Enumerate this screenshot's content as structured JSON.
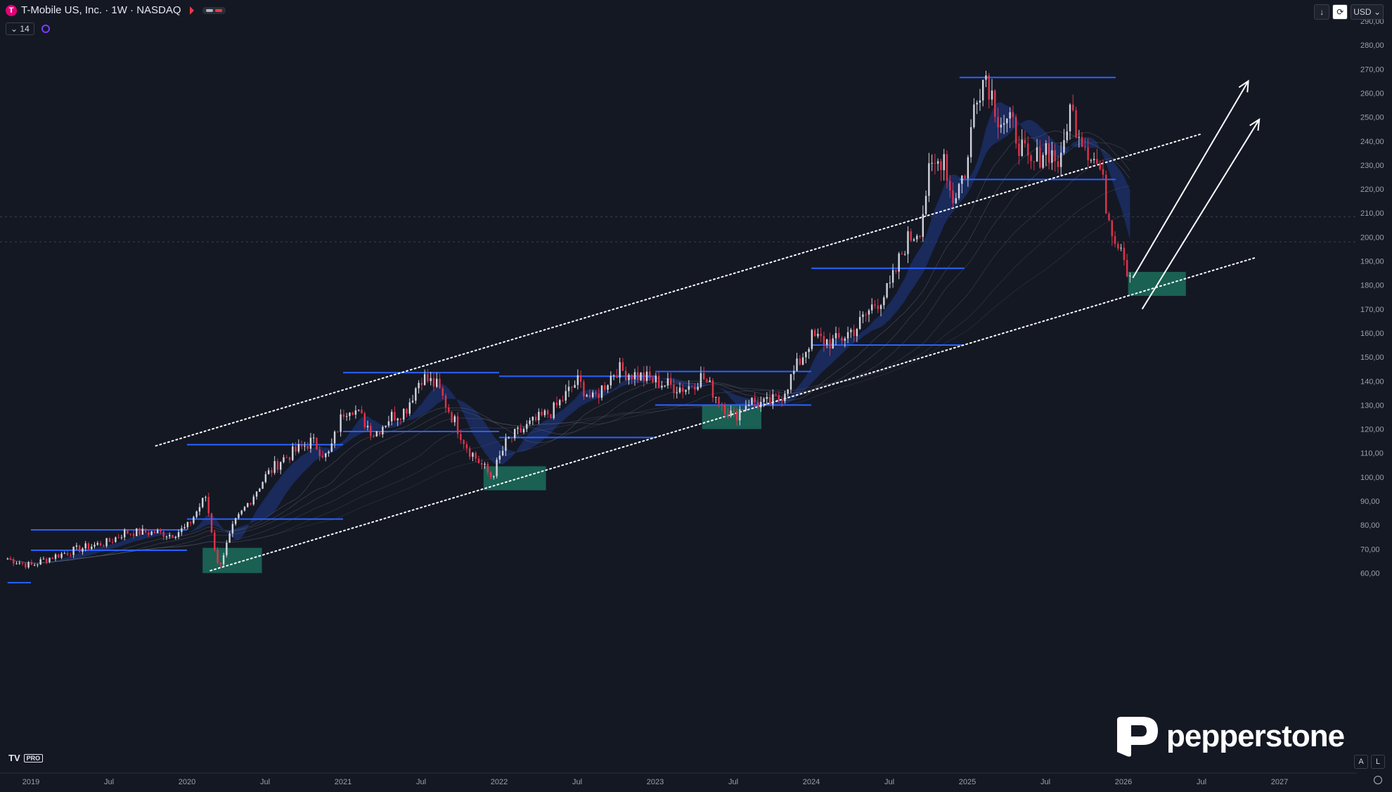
{
  "header": {
    "title": "T-Mobile US, Inc. · 1W · NASDAQ",
    "indicator_count": "14",
    "currency": "USD",
    "logo_letter": "T"
  },
  "branding": {
    "tv_label": "PRO",
    "broker": "pepperstone"
  },
  "corner_buttons": [
    "A",
    "L"
  ],
  "colors": {
    "background": "#141823",
    "up": "#d1d4dc",
    "down": "#e0334b",
    "level_line": "#2962ff",
    "zone": "#1b6d5c",
    "ribbon": "#1e3a8a"
  },
  "chart_data": {
    "type": "candlestick",
    "timeframe": "1W",
    "symbol": "T-Mobile US, Inc.",
    "exchange": "NASDAQ",
    "ylim": [
      50,
      290
    ],
    "x_ticks": [
      {
        "label": "2019",
        "t": 2019.0
      },
      {
        "label": "Jul",
        "t": 2019.5
      },
      {
        "label": "2020",
        "t": 2020.0
      },
      {
        "label": "Jul",
        "t": 2020.5
      },
      {
        "label": "2021",
        "t": 2021.0
      },
      {
        "label": "Jul",
        "t": 2021.5
      },
      {
        "label": "2022",
        "t": 2022.0
      },
      {
        "label": "Jul",
        "t": 2022.5
      },
      {
        "label": "2023",
        "t": 2023.0
      },
      {
        "label": "Jul",
        "t": 2023.5
      },
      {
        "label": "2024",
        "t": 2024.0
      },
      {
        "label": "Jul",
        "t": 2024.5
      },
      {
        "label": "2025",
        "t": 2025.0
      },
      {
        "label": "Jul",
        "t": 2025.5
      },
      {
        "label": "2026",
        "t": 2026.0
      },
      {
        "label": "Jul",
        "t": 2026.5
      },
      {
        "label": "2027",
        "t": 2027.0
      }
    ],
    "y_ticks": [
      "60,00",
      "70,00",
      "80,00",
      "90,00",
      "100,00",
      "110,00",
      "120,00",
      "130,00",
      "140,00",
      "150,00",
      "160,00",
      "170,00",
      "180,00",
      "190,00",
      "200,00",
      "210,00",
      "220,00",
      "230,00",
      "240,00",
      "250,00",
      "260,00",
      "270,00",
      "280,00",
      "290,00"
    ],
    "price_path": [
      [
        2018.85,
        66
      ],
      [
        2019.0,
        63
      ],
      [
        2019.1,
        66
      ],
      [
        2019.3,
        70
      ],
      [
        2019.5,
        73
      ],
      [
        2019.6,
        77
      ],
      [
        2019.8,
        77
      ],
      [
        2019.9,
        76
      ],
      [
        2020.0,
        79
      ],
      [
        2020.12,
        92
      ],
      [
        2020.2,
        62
      ],
      [
        2020.3,
        80
      ],
      [
        2020.5,
        100
      ],
      [
        2020.6,
        107
      ],
      [
        2020.8,
        115
      ],
      [
        2020.9,
        108
      ],
      [
        2021.0,
        127
      ],
      [
        2021.05,
        130
      ],
      [
        2021.2,
        118
      ],
      [
        2021.3,
        125
      ],
      [
        2021.4,
        128
      ],
      [
        2021.5,
        142
      ],
      [
        2021.6,
        138
      ],
      [
        2021.7,
        125
      ],
      [
        2021.8,
        112
      ],
      [
        2021.95,
        100
      ],
      [
        2022.05,
        115
      ],
      [
        2022.2,
        122
      ],
      [
        2022.35,
        128
      ],
      [
        2022.5,
        140
      ],
      [
        2022.6,
        132
      ],
      [
        2022.75,
        145
      ],
      [
        2022.9,
        142
      ],
      [
        2023.0,
        140
      ],
      [
        2023.1,
        138
      ],
      [
        2023.2,
        137
      ],
      [
        2023.3,
        142
      ],
      [
        2023.4,
        133
      ],
      [
        2023.5,
        125
      ],
      [
        2023.6,
        132
      ],
      [
        2023.7,
        130
      ],
      [
        2023.8,
        133
      ],
      [
        2023.9,
        145
      ],
      [
        2024.0,
        158
      ],
      [
        2024.15,
        156
      ],
      [
        2024.3,
        163
      ],
      [
        2024.4,
        172
      ],
      [
        2024.5,
        178
      ],
      [
        2024.6,
        197
      ],
      [
        2024.7,
        205
      ],
      [
        2024.75,
        225
      ],
      [
        2024.85,
        235
      ],
      [
        2024.9,
        215
      ],
      [
        2025.0,
        230
      ],
      [
        2025.05,
        260
      ],
      [
        2025.12,
        268
      ],
      [
        2025.2,
        250
      ],
      [
        2025.3,
        245
      ],
      [
        2025.4,
        228
      ],
      [
        2025.5,
        238
      ],
      [
        2025.6,
        230
      ],
      [
        2025.65,
        254
      ],
      [
        2025.75,
        240
      ],
      [
        2025.85,
        228
      ],
      [
        2025.9,
        210
      ],
      [
        2025.95,
        200
      ],
      [
        2026.0,
        196
      ],
      [
        2026.03,
        182
      ],
      [
        2026.06,
        196
      ]
    ],
    "levels": [
      {
        "y": 266.5,
        "t0": 2024.95,
        "t1": 2025.95
      },
      {
        "y": 224,
        "t0": 2024.95,
        "t1": 2025.95
      },
      {
        "y": 187,
        "t0": 2024.0,
        "t1": 2024.98
      },
      {
        "y": 155,
        "t0": 2024.0,
        "t1": 2024.98
      },
      {
        "y": 143.5,
        "t0": 2021.0,
        "t1": 2022.0
      },
      {
        "y": 119,
        "t0": 2021.0,
        "t1": 2022.0
      },
      {
        "y": 142,
        "t0": 2022.0,
        "t1": 2023.0
      },
      {
        "y": 116.5,
        "t0": 2022.0,
        "t1": 2023.0
      },
      {
        "y": 144,
        "t0": 2023.0,
        "t1": 2024.0
      },
      {
        "y": 130,
        "t0": 2023.0,
        "t1": 2024.0
      },
      {
        "y": 113.5,
        "t0": 2020.0,
        "t1": 2021.0
      },
      {
        "y": 82.5,
        "t0": 2020.0,
        "t1": 2021.0
      },
      {
        "y": 78,
        "t0": 2019.0,
        "t1": 2020.0
      },
      {
        "y": 69.5,
        "t0": 2019.0,
        "t1": 2020.0
      },
      {
        "y": 56,
        "t0": 2018.85,
        "t1": 2019.0
      }
    ],
    "zones": [
      {
        "t0": 2020.1,
        "t1": 2020.48,
        "y0": 60,
        "y1": 70.5
      },
      {
        "t0": 2021.9,
        "t1": 2022.3,
        "y0": 94.5,
        "y1": 104.5
      },
      {
        "t0": 2023.3,
        "t1": 2023.68,
        "y0": 120,
        "y1": 130
      },
      {
        "t0": 2026.03,
        "t1": 2026.4,
        "y0": 175.5,
        "y1": 185.5
      }
    ],
    "trendlines": [
      {
        "t0": 2019.8,
        "y0": 113,
        "t1": 2026.5,
        "y1": 243
      },
      {
        "t0": 2020.15,
        "y0": 61,
        "t1": 2026.85,
        "y1": 191.5
      }
    ],
    "arrows": [
      {
        "t0": 2026.06,
        "y0": 183,
        "t1": 2026.8,
        "y1": 265
      },
      {
        "t0": 2026.12,
        "y0": 170,
        "t1": 2026.87,
        "y1": 249
      }
    ]
  }
}
